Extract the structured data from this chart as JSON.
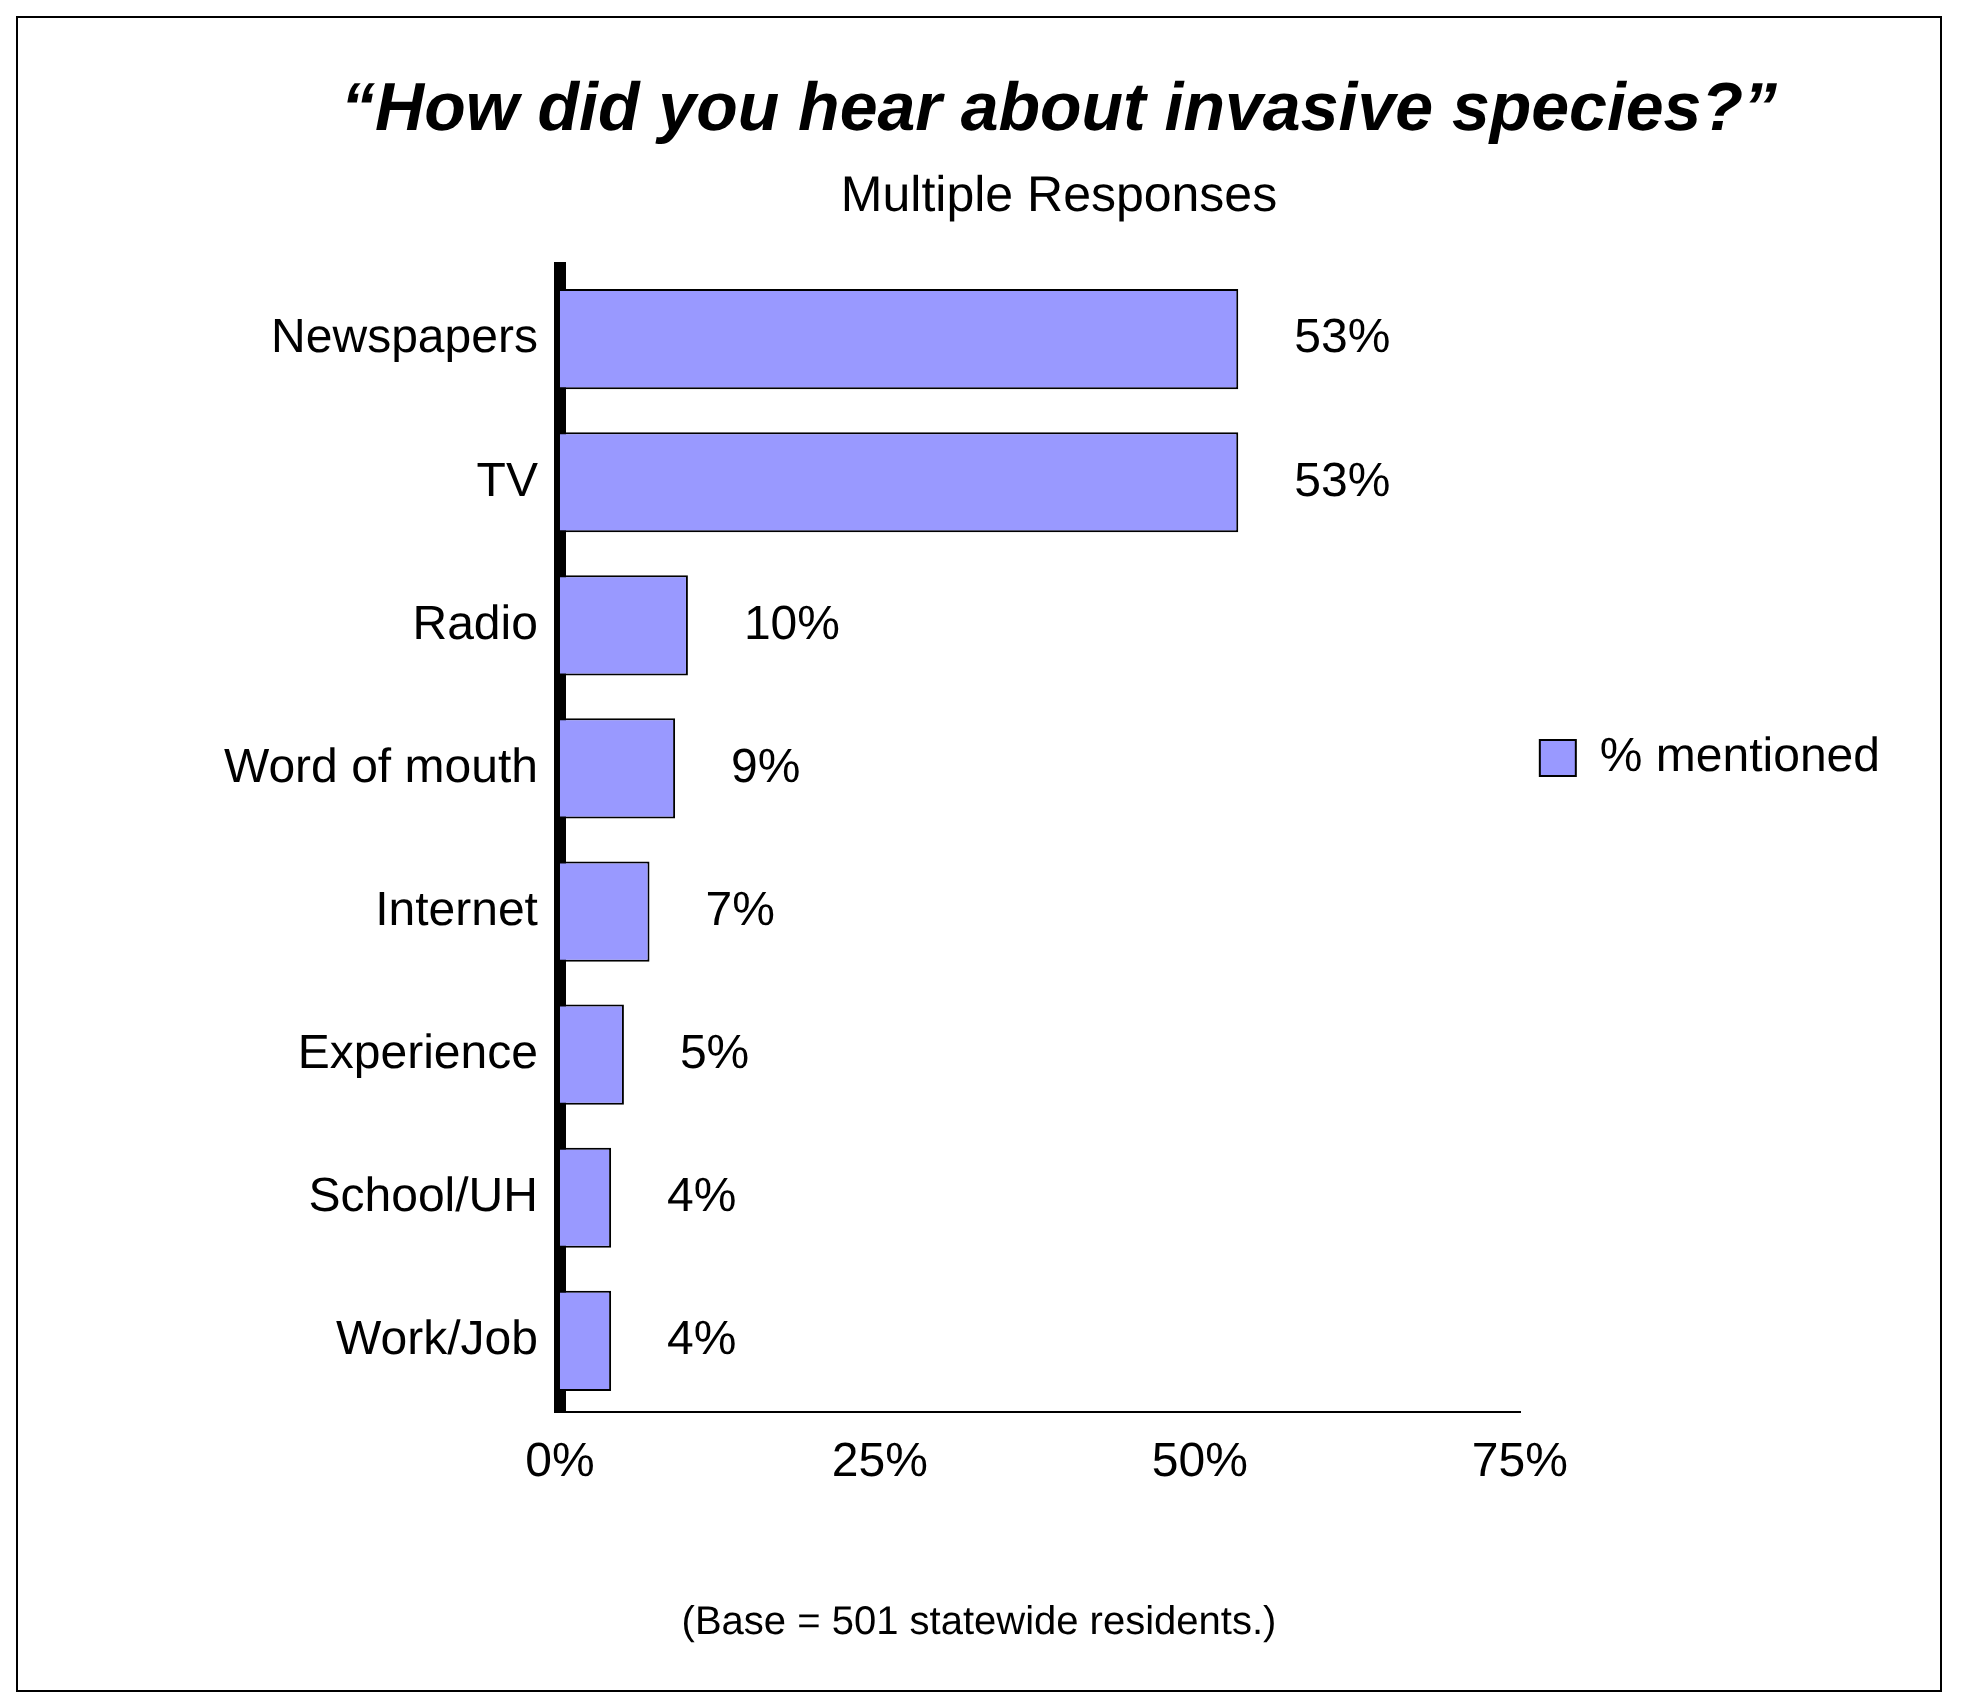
{
  "chart_data": {
    "type": "bar",
    "orientation": "horizontal",
    "title": "“How did you hear about invasive species?”",
    "subtitle": "Multiple Responses",
    "categories": [
      "Newspapers",
      "TV",
      "Radio",
      "Word of mouth",
      "Internet",
      "Experience",
      "School/UH",
      "Work/Job"
    ],
    "series": [
      {
        "name": "% mentioned",
        "color": "#9999ff",
        "values": [
          53,
          53,
          10,
          9,
          7,
          5,
          4,
          4
        ],
        "value_labels": [
          "53%",
          "53%",
          "10%",
          "9%",
          "7%",
          "5%",
          "4%",
          "4%"
        ]
      }
    ],
    "xlim": [
      0,
      75
    ],
    "xticks": [
      {
        "value": 0,
        "label": "0%"
      },
      {
        "value": 25,
        "label": "25%"
      },
      {
        "value": 50,
        "label": "50%"
      },
      {
        "value": 75,
        "label": "75%"
      }
    ],
    "grid": false,
    "legend": "right",
    "annotations": [
      "(Base = 501 statewide residents.)"
    ]
  }
}
